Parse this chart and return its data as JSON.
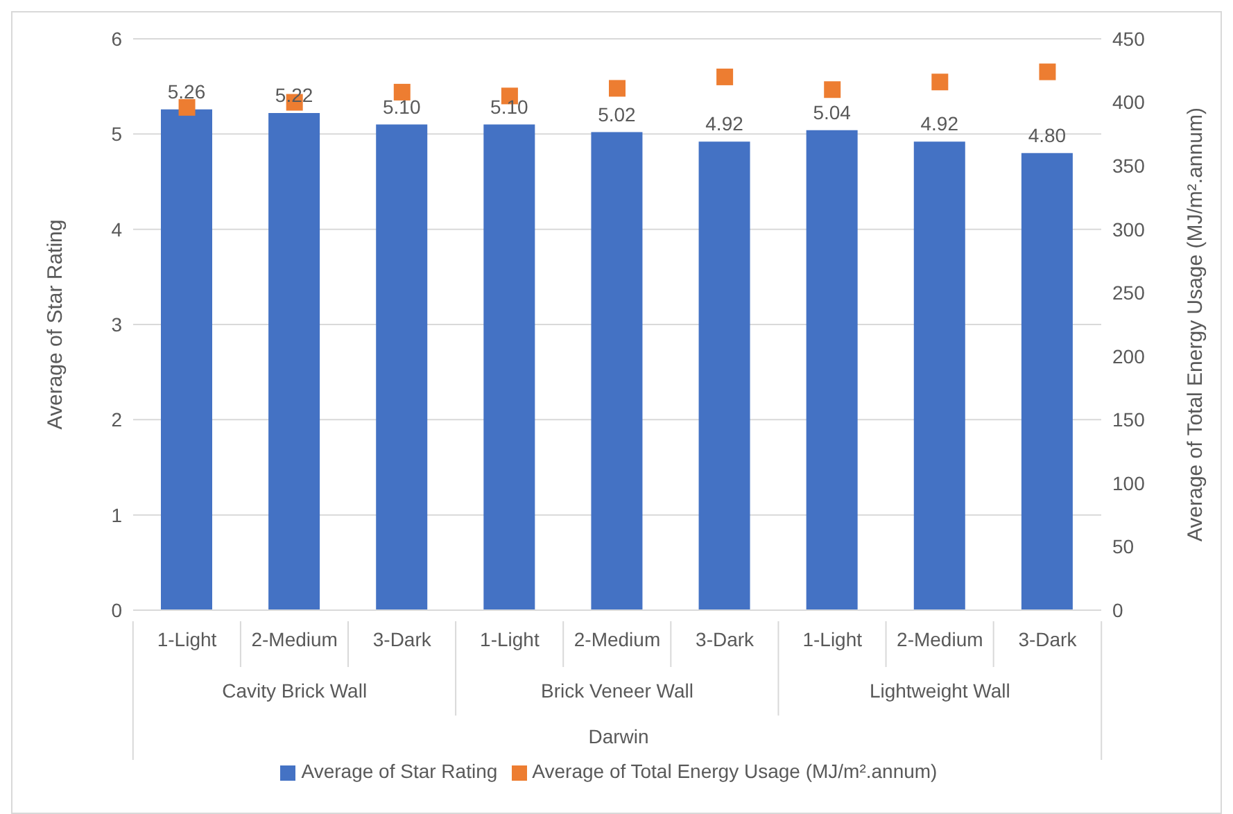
{
  "chart_data": {
    "type": "bar",
    "categories": [
      "1-Light",
      "2-Medium",
      "3-Dark",
      "1-Light",
      "2-Medium",
      "3-Dark",
      "1-Light",
      "2-Medium",
      "3-Dark"
    ],
    "ylabel": "Average of Star Rating",
    "y2label": "Average of Total Energy Usage (MJ/m².annum)",
    "series": [
      {
        "name": "Average of Star Rating",
        "color": "#4472c4",
        "values": [
          5.26,
          5.22,
          5.1,
          5.1,
          5.02,
          4.92,
          5.04,
          4.92,
          4.8
        ],
        "value_labels": [
          "5.26",
          "5.22",
          "5.10",
          "5.10",
          "5.02",
          "4.92",
          "5.04",
          "4.92",
          "4.80"
        ]
      },
      {
        "name": "Average of Total Energy Usage (MJ/m².annum)",
        "type": "scatter",
        "axis": "y2",
        "marker": "square",
        "color": "#ed7d31",
        "values": [
          396,
          400,
          408,
          405,
          411,
          420,
          410,
          416,
          424
        ]
      }
    ],
    "ylim": [
      0,
      6
    ],
    "yticks": [
      0,
      1,
      2,
      3,
      4,
      5,
      6
    ],
    "y2lim": [
      0,
      450
    ],
    "y2ticks": [
      0,
      50,
      100,
      150,
      200,
      250,
      300,
      350,
      400,
      450
    ],
    "grid": "y",
    "legend": "bottom",
    "annotations": [
      "Cavity Brick Wall",
      "Brick Veneer Wall",
      "Lightweight Wall",
      "Darwin"
    ]
  }
}
